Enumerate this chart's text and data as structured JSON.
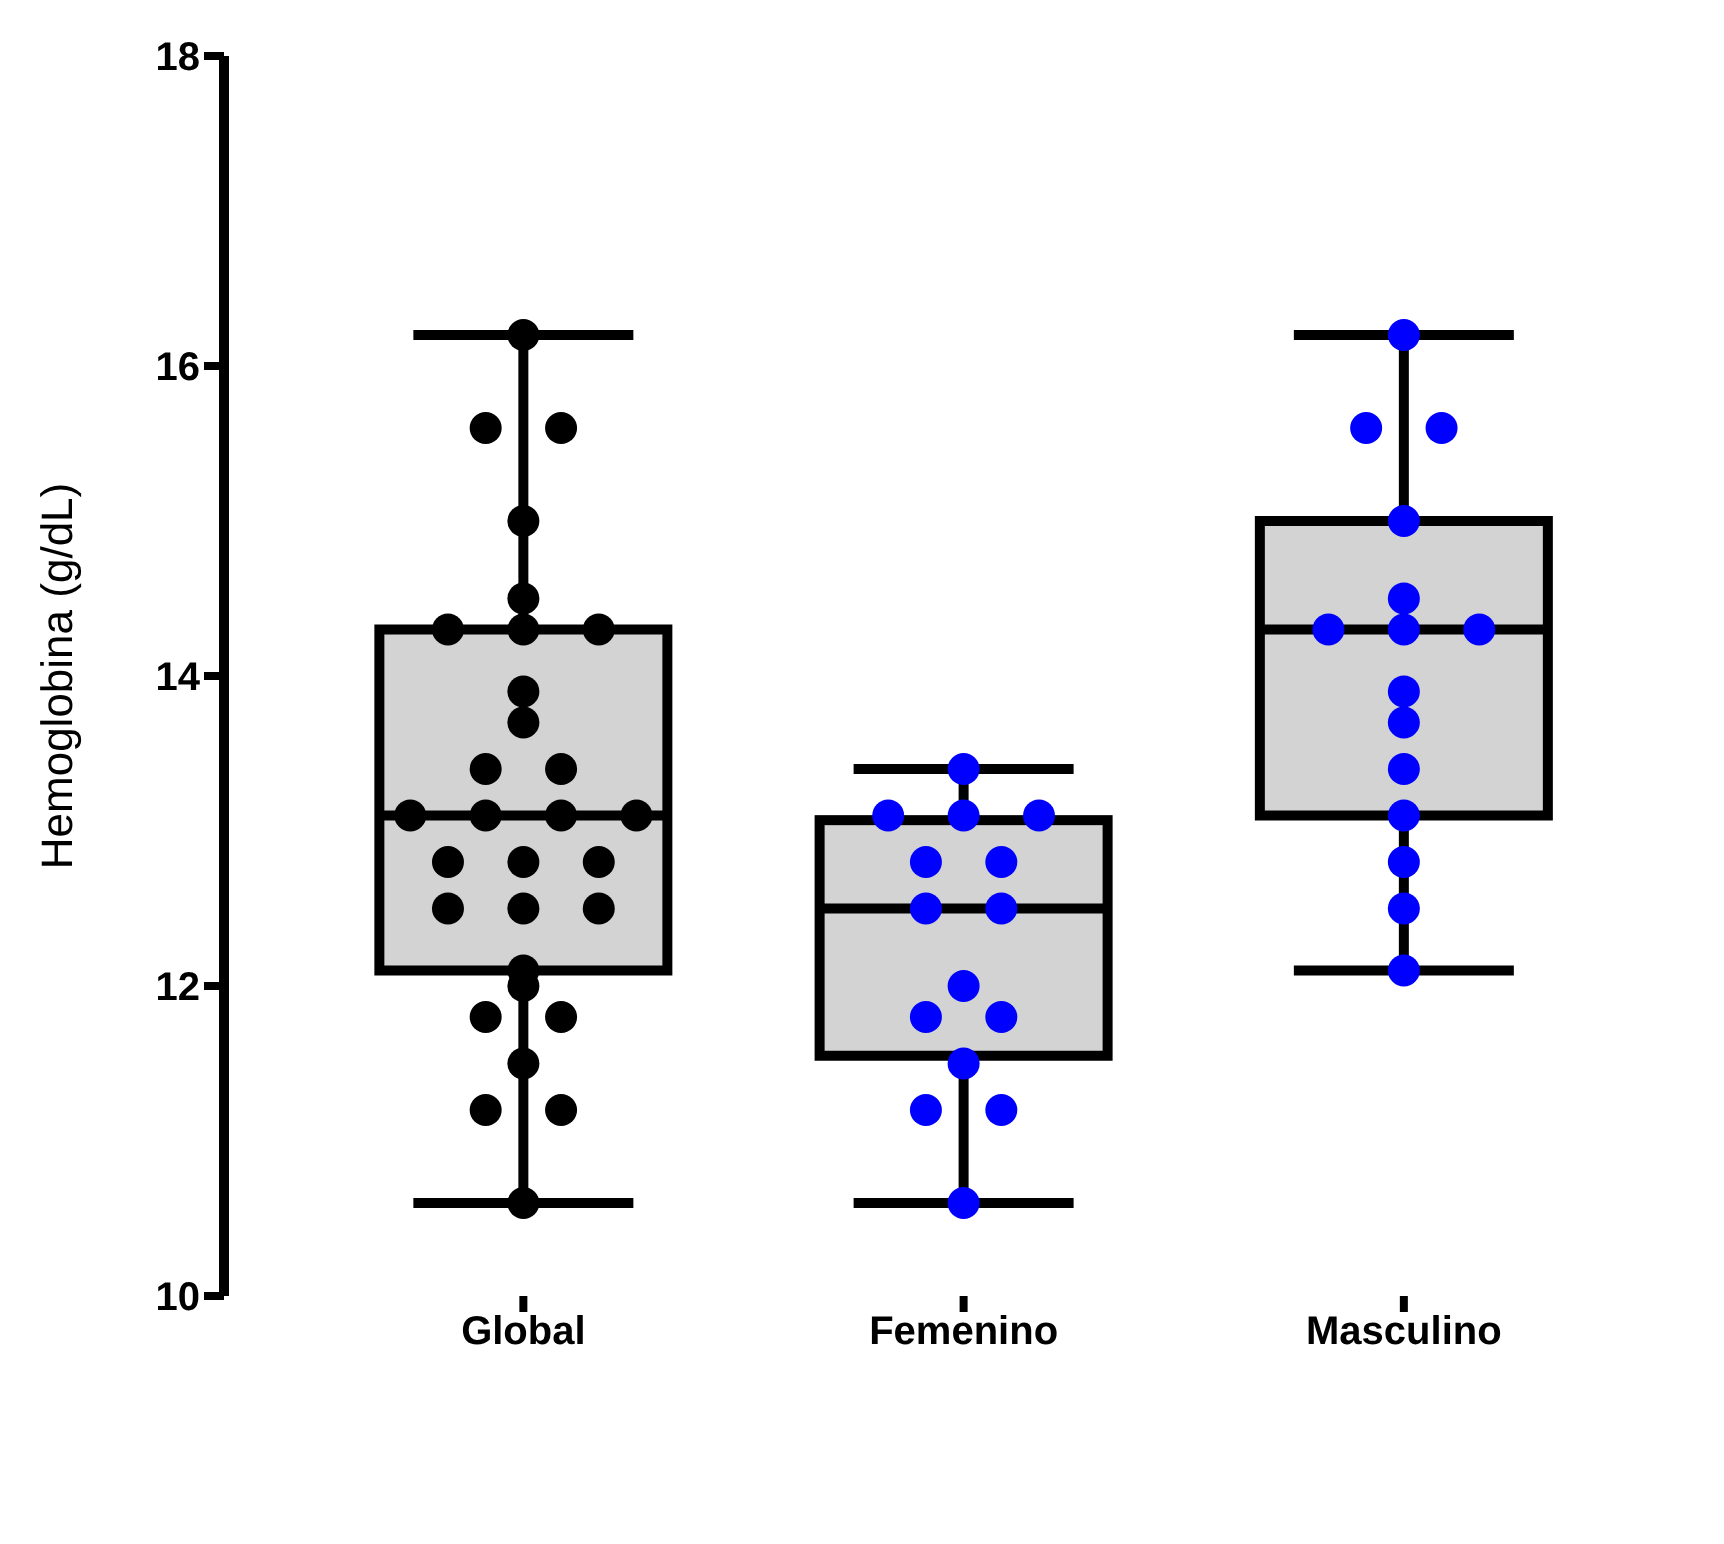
{
  "chart_data": {
    "type": "box",
    "ylabel": "Hemoglobina (g/dL)",
    "categories": [
      "Global",
      "Femenino",
      "Masculino"
    ],
    "ylim": [
      10,
      18
    ],
    "yticks": [
      10,
      12,
      14,
      16,
      18
    ],
    "grid": false,
    "boxes": [
      {
        "low": 10.6,
        "q1": 12.1,
        "median": 13.1,
        "q3": 14.3,
        "high": 16.2
      },
      {
        "low": 10.6,
        "q1": 11.55,
        "median": 12.5,
        "q3": 13.07,
        "high": 13.4
      },
      {
        "low": 12.1,
        "q1": 13.1,
        "median": 14.3,
        "q3": 15.0,
        "high": 16.2
      }
    ],
    "series": [
      {
        "type": "scatter",
        "color": "#000000",
        "x": [
          "Global",
          "Global",
          "Global",
          "Global",
          "Global",
          "Global",
          "Global",
          "Global",
          "Global",
          "Global",
          "Global",
          "Global",
          "Global",
          "Global",
          "Global",
          "Global",
          "Global",
          "Global",
          "Global",
          "Global",
          "Global",
          "Global",
          "Global",
          "Global",
          "Global",
          "Global",
          "Global",
          "Global",
          "Global",
          "Global"
        ],
        "values": [
          16.2,
          15.6,
          15.6,
          15.0,
          14.5,
          14.3,
          14.3,
          14.3,
          13.9,
          13.7,
          13.4,
          13.4,
          13.1,
          13.1,
          13.1,
          13.1,
          12.8,
          12.8,
          12.8,
          12.5,
          12.5,
          12.5,
          12.1,
          12.0,
          11.8,
          11.8,
          11.5,
          11.2,
          11.2,
          10.6
        ]
      },
      {
        "type": "scatter",
        "color": "#0000ff",
        "x": [
          "Femenino",
          "Femenino",
          "Femenino",
          "Femenino",
          "Femenino",
          "Femenino",
          "Femenino",
          "Femenino",
          "Femenino",
          "Femenino",
          "Femenino",
          "Femenino",
          "Femenino",
          "Femenino",
          "Femenino",
          "Masculino",
          "Masculino",
          "Masculino",
          "Masculino",
          "Masculino",
          "Masculino",
          "Masculino",
          "Masculino",
          "Masculino",
          "Masculino",
          "Masculino",
          "Masculino",
          "Masculino",
          "Masculino",
          "Masculino"
        ],
        "values": [
          13.4,
          13.1,
          13.1,
          13.1,
          12.8,
          12.8,
          12.5,
          12.5,
          12.0,
          11.8,
          11.8,
          11.5,
          11.2,
          11.2,
          10.6,
          16.2,
          15.6,
          15.6,
          15.0,
          14.5,
          14.3,
          14.3,
          14.3,
          13.9,
          13.7,
          13.4,
          13.1,
          12.8,
          12.5,
          12.1
        ]
      }
    ]
  }
}
